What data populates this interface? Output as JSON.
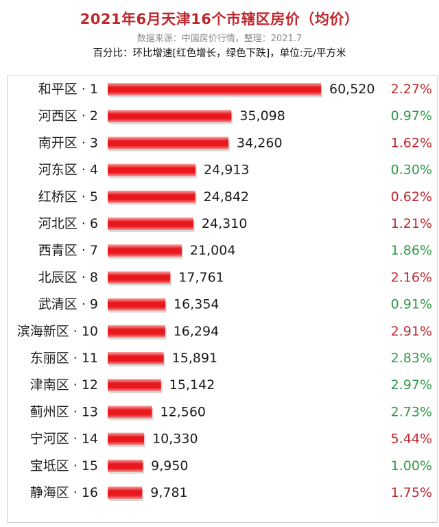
{
  "title": "2021年6月天津16个市辖区房价（均价）",
  "source": "数据来源：中国房价行情，整理：2021.7",
  "unit_note": "百分比：环比增速[红色增长，绿色下跌]，单位:元/平方米",
  "colors": {
    "bar": "#e8171c",
    "increase": "#c0272d",
    "decrease": "#2e9a47",
    "title": "#c0272d"
  },
  "chart_data": {
    "type": "bar",
    "orientation": "horizontal",
    "title": "2021年6月天津16个市辖区房价（均价）",
    "unit": "元/平方米",
    "categories": [
      "和平区 · 1",
      "河西区 · 2",
      "南开区 · 3",
      "河东区 · 4",
      "红桥区 · 5",
      "河北区 · 6",
      "西青区 · 7",
      "北辰区 · 8",
      "武清区 · 9",
      "滨海新区 · 10",
      "东丽区 · 11",
      "津南区 · 12",
      "蓟州区 · 13",
      "宁河区 · 14",
      "宝坻区 · 15",
      "静海区 · 16"
    ],
    "values": [
      60520,
      35098,
      34260,
      24913,
      24842,
      24310,
      21004,
      17761,
      16354,
      16294,
      15891,
      15142,
      12560,
      10330,
      9950,
      9781
    ],
    "value_labels": [
      "60,520",
      "35,098",
      "34,260",
      "24,913",
      "24,842",
      "24,310",
      "21,004",
      "17,761",
      "16,354",
      "16,294",
      "15,891",
      "15,142",
      "12,560",
      "10,330",
      "9,950",
      "9,781"
    ],
    "mom_change": [
      "2.27%",
      "0.97%",
      "1.62%",
      "0.30%",
      "0.62%",
      "1.21%",
      "1.86%",
      "2.16%",
      "0.91%",
      "2.91%",
      "2.83%",
      "2.97%",
      "2.73%",
      "5.44%",
      "1.00%",
      "1.75%"
    ],
    "mom_color": [
      "increase",
      "decrease",
      "increase",
      "decrease",
      "increase",
      "increase",
      "decrease",
      "increase",
      "decrease",
      "increase",
      "decrease",
      "decrease",
      "decrease",
      "increase",
      "decrease",
      "increase"
    ],
    "grid": false,
    "legend": "none"
  }
}
